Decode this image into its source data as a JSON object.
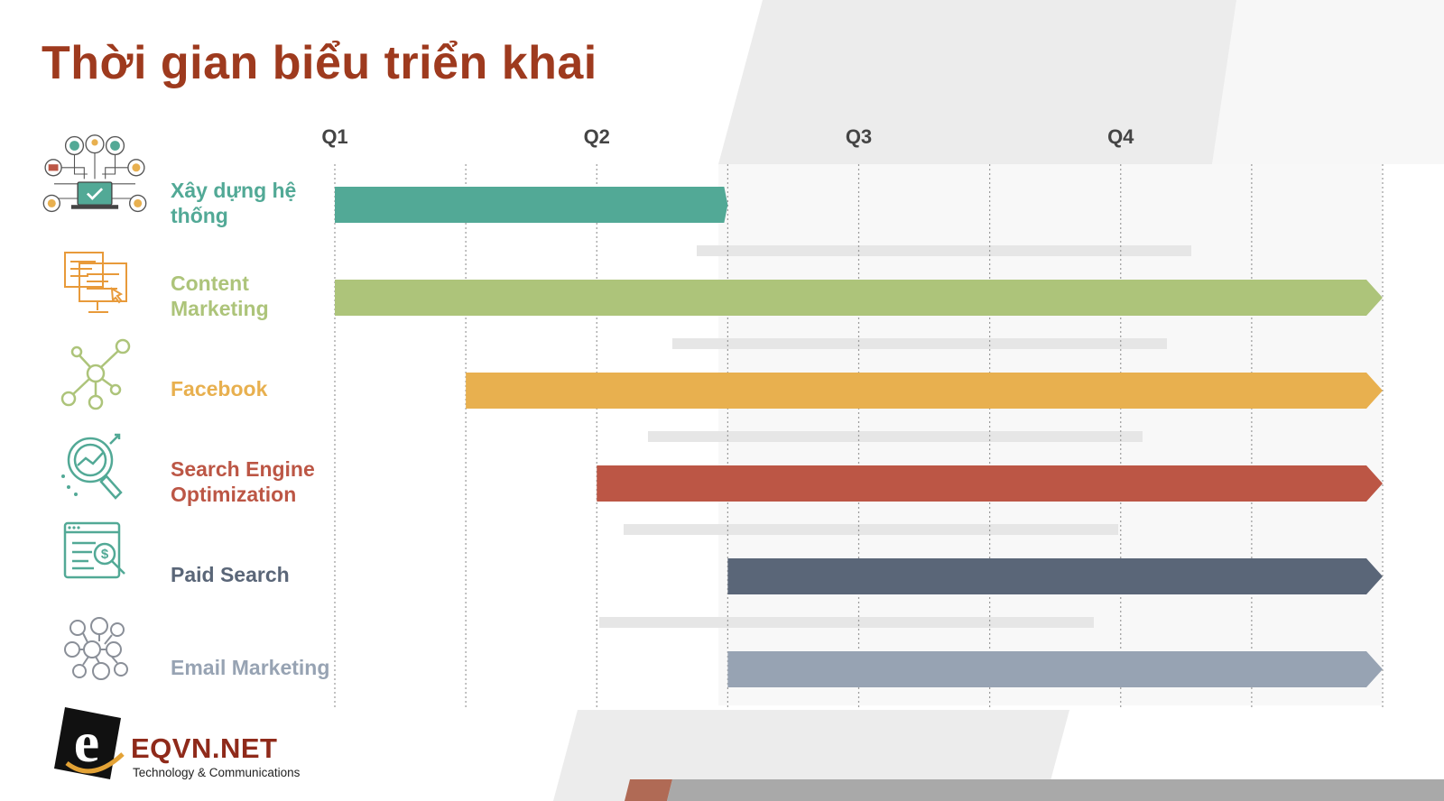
{
  "page": {
    "title": "Thời gian biểu triển khai"
  },
  "brand": {
    "name": "EQVN.NET",
    "tagline": "Technology & Communications"
  },
  "chart_data": {
    "type": "gantt",
    "title": "Thời gian biểu triển khai",
    "x_unit": "quarter",
    "xlim": [
      0,
      4
    ],
    "quarters": [
      "Q1",
      "Q2",
      "Q3",
      "Q4"
    ],
    "grid": true,
    "tasks": [
      {
        "name": "Xây dựng hệ thống",
        "lines": [
          "Xây dựng hệ",
          "thống"
        ],
        "start": 0.0,
        "end": 1.5,
        "color": "#52a996",
        "icon": "network-laptop-icon"
      },
      {
        "name": "Content Marketing",
        "lines": [
          "Content",
          "Marketing"
        ],
        "start": 0.0,
        "end": 4.0,
        "color": "#adc47a",
        "icon": "monitor-content-icon"
      },
      {
        "name": "Facebook",
        "lines": [
          "Facebook"
        ],
        "start": 0.5,
        "end": 4.0,
        "color": "#e8b04f",
        "icon": "social-nodes-icon"
      },
      {
        "name": "Search Engine Optimization",
        "lines": [
          "Search Engine",
          "Optimization"
        ],
        "start": 1.0,
        "end": 4.0,
        "color": "#bc5645",
        "icon": "magnifier-chart-icon"
      },
      {
        "name": "Paid Search",
        "lines": [
          "Paid Search"
        ],
        "start": 1.5,
        "end": 4.0,
        "color": "#5a6678",
        "icon": "browser-dollar-icon"
      },
      {
        "name": "Email Marketing",
        "lines": [
          "Email Marketing"
        ],
        "start": 1.5,
        "end": 4.0,
        "color": "#97a3b3",
        "icon": "people-network-icon"
      }
    ]
  }
}
